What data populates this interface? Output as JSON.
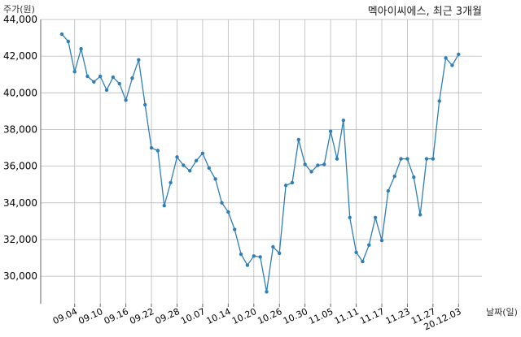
{
  "chart_data": {
    "type": "line",
    "title": "멕아이씨에스, 최근 3개월",
    "ylabel": "주가(원)",
    "xlabel": "날짜(일)",
    "ylim": [
      28500,
      44000
    ],
    "yticks": [
      30000,
      32000,
      34000,
      36000,
      38000,
      40000,
      42000,
      44000
    ],
    "ytick_labels": [
      "30,000",
      "32,000",
      "34,000",
      "36,000",
      "38,000",
      "40,000",
      "42,000",
      "44,000"
    ],
    "xtick_labels": [
      "09.04",
      "09.10",
      "09.16",
      "09.22",
      "09.28",
      "10.07",
      "10.14",
      "10.20",
      "10.26",
      "10.30",
      "11.05",
      "11.11",
      "11.17",
      "11.23",
      "11.27",
      "20.12.03"
    ],
    "xtick_indices": [
      2,
      6,
      10,
      14,
      18,
      22,
      26,
      30,
      34,
      38,
      42,
      46,
      50,
      54,
      58,
      62
    ],
    "grid": true,
    "line_color": "#2f7fb5",
    "series": [
      {
        "name": "",
        "values": [
          43200,
          42800,
          41150,
          42400,
          40900,
          40600,
          40900,
          40150,
          40850,
          40500,
          39600,
          40800,
          41800,
          39350,
          37000,
          36850,
          33850,
          35100,
          36500,
          36050,
          35750,
          36300,
          36700,
          35900,
          35300,
          34000,
          33500,
          32550,
          31200,
          30600,
          31100,
          31050,
          29150,
          31600,
          31250,
          34950,
          35100,
          37450,
          36100,
          35700,
          36050,
          36100,
          37900,
          36400,
          38500,
          33200,
          31300,
          30800,
          31700,
          33200,
          31950,
          34650,
          35450,
          36400,
          36400,
          35400,
          33350,
          36400,
          36400,
          39550,
          41900,
          41500,
          42100
        ]
      }
    ]
  }
}
